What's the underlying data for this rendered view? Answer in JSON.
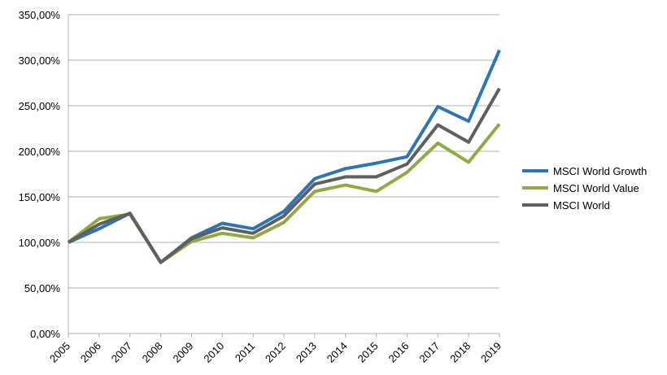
{
  "chart_data": {
    "type": "line",
    "title": "",
    "xlabel": "",
    "ylabel": "",
    "x": [
      "2005",
      "2006",
      "2007",
      "2008",
      "2009",
      "2010",
      "2011",
      "2012",
      "2013",
      "2014",
      "2015",
      "2016",
      "2017",
      "2018",
      "2019"
    ],
    "ylim": [
      0,
      350
    ],
    "yticks": [
      0,
      50,
      100,
      150,
      200,
      250,
      300,
      350
    ],
    "ytick_labels": [
      "0,00%",
      "50,00%",
      "100,00%",
      "150,00%",
      "200,00%",
      "250,00%",
      "300,00%",
      "350,00%"
    ],
    "grid": {
      "horizontal": true,
      "vertical": false
    },
    "legend_position": "right",
    "series": [
      {
        "name": "MSCI World Growth",
        "color": "#2e75b6",
        "values": [
          100,
          115,
          132,
          78,
          105,
          121,
          115,
          134,
          170,
          181,
          187,
          194,
          249,
          233,
          311
        ]
      },
      {
        "name": "MSCI World Value",
        "color": "#8faa44",
        "values": [
          100,
          126,
          131,
          78,
          101,
          110,
          105,
          122,
          156,
          163,
          156,
          177,
          209,
          188,
          230
        ]
      },
      {
        "name": "MSCI World",
        "color": "#5f5f5f",
        "values": [
          100,
          120,
          132,
          78,
          104,
          116,
          110,
          129,
          164,
          172,
          172,
          186,
          229,
          210,
          269
        ]
      }
    ]
  }
}
